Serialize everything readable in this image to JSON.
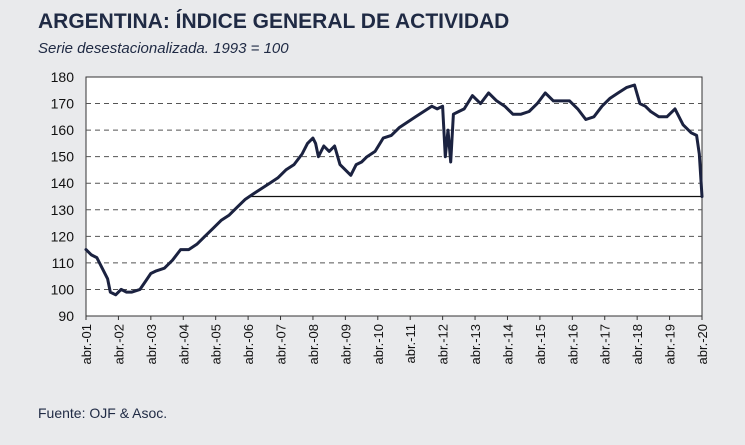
{
  "title": "ARGENTINA: ÍNDICE GENERAL DE ACTIVIDAD",
  "subtitle": "Serie desestacionalizada. 1993 = 100",
  "source": "Fuente: OJF & Asoc.",
  "colors": {
    "background": "#e9eaec",
    "plot_background": "#ffffff",
    "line": "#1b2240",
    "grid": "#555555",
    "reference_line": "#111111"
  },
  "chart_data": {
    "type": "line",
    "title": "ARGENTINA: ÍNDICE GENERAL DE ACTIVIDAD",
    "subtitle": "Serie desestacionalizada. 1993 = 100",
    "xlabel": "",
    "ylabel": "",
    "ylim": [
      90,
      180
    ],
    "yticks": [
      90,
      100,
      110,
      120,
      130,
      140,
      150,
      160,
      170,
      180
    ],
    "xlim": [
      "2001-04",
      "2020-04"
    ],
    "x_tick_labels": [
      "abr.-01",
      "abr.-02",
      "abr.-03",
      "abr.-04",
      "abr.-05",
      "abr.-06",
      "abr.-07",
      "abr.-08",
      "abr.-09",
      "abr.-10",
      "abr.-11",
      "abr.-12",
      "abr.-13",
      "abr.-14",
      "abr.-15",
      "abr.-16",
      "abr.-17",
      "abr.-18",
      "abr.-19",
      "abr.-20"
    ],
    "grid": "horizontal dashed",
    "reference_line": {
      "y": 135,
      "from": "2006-04",
      "to": "2020-04"
    },
    "series": [
      {
        "points": [
          [
            "2001-04",
            115
          ],
          [
            "2001-06",
            113
          ],
          [
            "2001-08",
            112
          ],
          [
            "2001-10",
            108
          ],
          [
            "2001-12",
            104
          ],
          [
            "2002-01",
            99
          ],
          [
            "2002-03",
            98
          ],
          [
            "2002-05",
            100
          ],
          [
            "2002-07",
            99
          ],
          [
            "2002-09",
            99
          ],
          [
            "2002-12",
            100
          ],
          [
            "2003-02",
            103
          ],
          [
            "2003-04",
            106
          ],
          [
            "2003-06",
            107
          ],
          [
            "2003-09",
            108
          ],
          [
            "2003-12",
            111
          ],
          [
            "2004-03",
            115
          ],
          [
            "2004-06",
            115
          ],
          [
            "2004-09",
            117
          ],
          [
            "2004-12",
            120
          ],
          [
            "2005-03",
            123
          ],
          [
            "2005-06",
            126
          ],
          [
            "2005-09",
            128
          ],
          [
            "2005-12",
            131
          ],
          [
            "2006-03",
            134
          ],
          [
            "2006-06",
            136
          ],
          [
            "2006-09",
            138
          ],
          [
            "2006-12",
            140
          ],
          [
            "2007-03",
            142
          ],
          [
            "2007-06",
            145
          ],
          [
            "2007-09",
            147
          ],
          [
            "2007-12",
            151
          ],
          [
            "2008-02",
            155
          ],
          [
            "2008-04",
            157
          ],
          [
            "2008-05",
            155
          ],
          [
            "2008-06",
            150
          ],
          [
            "2008-08",
            154
          ],
          [
            "2008-10",
            152
          ],
          [
            "2008-12",
            154
          ],
          [
            "2009-02",
            147
          ],
          [
            "2009-04",
            145
          ],
          [
            "2009-06",
            143
          ],
          [
            "2009-08",
            147
          ],
          [
            "2009-10",
            148
          ],
          [
            "2009-12",
            150
          ],
          [
            "2010-03",
            152
          ],
          [
            "2010-06",
            157
          ],
          [
            "2010-09",
            158
          ],
          [
            "2010-12",
            161
          ],
          [
            "2011-03",
            163
          ],
          [
            "2011-06",
            165
          ],
          [
            "2011-09",
            167
          ],
          [
            "2011-12",
            169
          ],
          [
            "2012-02",
            168
          ],
          [
            "2012-04",
            169
          ],
          [
            "2012-05",
            150
          ],
          [
            "2012-06",
            160
          ],
          [
            "2012-07",
            148
          ],
          [
            "2012-08",
            166
          ],
          [
            "2012-10",
            167
          ],
          [
            "2012-12",
            168
          ],
          [
            "2013-03",
            173
          ],
          [
            "2013-06",
            170
          ],
          [
            "2013-09",
            174
          ],
          [
            "2013-12",
            171
          ],
          [
            "2014-03",
            169
          ],
          [
            "2014-06",
            166
          ],
          [
            "2014-09",
            166
          ],
          [
            "2014-12",
            167
          ],
          [
            "2015-03",
            170
          ],
          [
            "2015-06",
            174
          ],
          [
            "2015-09",
            171
          ],
          [
            "2015-12",
            171
          ],
          [
            "2016-03",
            171
          ],
          [
            "2016-06",
            168
          ],
          [
            "2016-09",
            164
          ],
          [
            "2016-12",
            165
          ],
          [
            "2017-03",
            169
          ],
          [
            "2017-06",
            172
          ],
          [
            "2017-09",
            174
          ],
          [
            "2017-12",
            176
          ],
          [
            "2018-03",
            177
          ],
          [
            "2018-05",
            170
          ],
          [
            "2018-07",
            169
          ],
          [
            "2018-09",
            167
          ],
          [
            "2018-12",
            165
          ],
          [
            "2019-03",
            165
          ],
          [
            "2019-06",
            168
          ],
          [
            "2019-09",
            162
          ],
          [
            "2019-12",
            159
          ],
          [
            "2020-02",
            158
          ],
          [
            "2020-03",
            151
          ],
          [
            "2020-04",
            135
          ]
        ]
      }
    ]
  }
}
